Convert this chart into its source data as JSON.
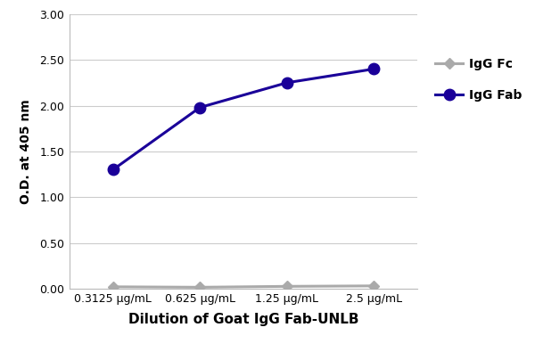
{
  "x_labels": [
    "0.3125 μg/mL",
    "0.625 μg/mL",
    "1.25 μg/mL",
    "2.5 μg/mL"
  ],
  "x_positions": [
    0,
    1,
    2,
    3
  ],
  "igg_fc_values": [
    0.02,
    0.015,
    0.025,
    0.03
  ],
  "igg_fab_values": [
    1.3,
    1.98,
    2.25,
    2.4
  ],
  "igg_fc_color": "#aaaaaa",
  "igg_fab_color": "#1a0099",
  "ylabel": "O.D. at 405 nm",
  "xlabel": "Dilution of Goat IgG Fab-UNLB",
  "ylim": [
    0.0,
    3.0
  ],
  "yticks": [
    0.0,
    0.5,
    1.0,
    1.5,
    2.0,
    2.5,
    3.0
  ],
  "ytick_labels": [
    "0.00",
    "0.50",
    "1.00",
    "1.50",
    "2.00",
    "2.50",
    "3.00"
  ],
  "legend_labels": [
    "IgG Fc",
    "IgG Fab"
  ],
  "fc_marker": "D",
  "fab_marker": "o",
  "fc_marker_size": 6,
  "fab_marker_size": 9,
  "line_width": 2.2,
  "background_color": "#ffffff",
  "grid_color": "#cccccc",
  "xlabel_fontsize": 11,
  "ylabel_fontsize": 10,
  "tick_fontsize": 9,
  "legend_fontsize": 10
}
